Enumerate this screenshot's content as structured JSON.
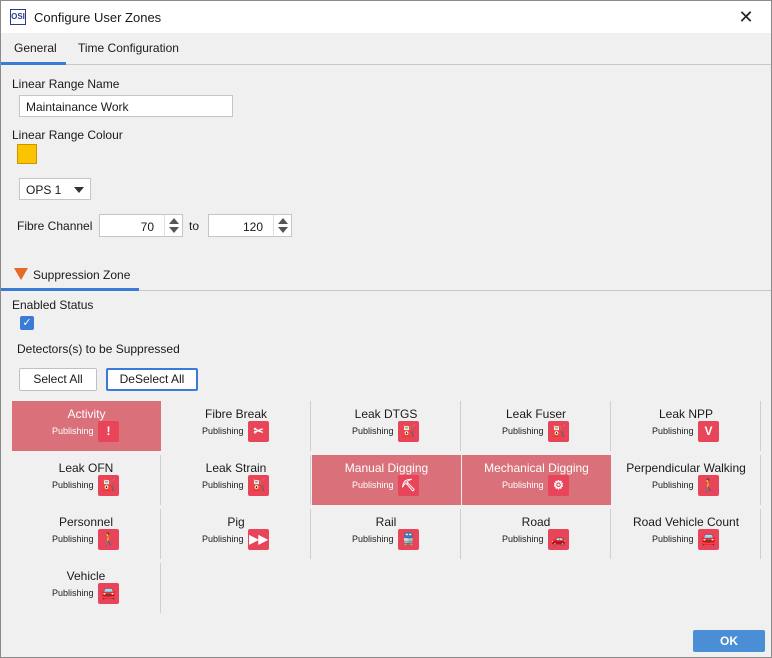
{
  "window": {
    "title": "Configure User Zones",
    "app_icon_text": "OSI"
  },
  "tabs": [
    {
      "label": "General"
    },
    {
      "label": "Time Configuration"
    }
  ],
  "general": {
    "range_name_label": "Linear Range Name",
    "range_name_value": "Maintainance Work",
    "range_colour_label": "Linear Range Colour",
    "range_colour": "#fbc300",
    "ops_value": "OPS 1",
    "fibre_channel_label": "Fibre Channel",
    "from_value": "70",
    "to_label": "to",
    "to_value": "120"
  },
  "suppression": {
    "header": "Suppression Zone",
    "enabled_label": "Enabled Status",
    "enabled_checked": true,
    "detectors_label": "Detectors(s) to be Suppressed",
    "select_all": "Select All",
    "deselect_all": "DeSelect All",
    "detectors": [
      {
        "name": "Activity",
        "status": "Publishing",
        "icon": "!",
        "icon_name": "exclamation-icon",
        "selected": true
      },
      {
        "name": "Fibre Break",
        "status": "Publishing",
        "icon": "✂",
        "icon_name": "fibre-break-icon",
        "selected": false
      },
      {
        "name": "Leak DTGS",
        "status": "Publishing",
        "icon": "⛽",
        "icon_name": "tap-icon",
        "selected": false
      },
      {
        "name": "Leak Fuser",
        "status": "Publishing",
        "icon": "⛽",
        "icon_name": "tap-icon",
        "selected": false
      },
      {
        "name": "Leak NPP",
        "status": "Publishing",
        "icon": "V",
        "icon_name": "v-icon",
        "selected": false
      },
      {
        "name": "Leak OFN",
        "status": "Publishing",
        "icon": "⛽",
        "icon_name": "tap-icon",
        "selected": false
      },
      {
        "name": "Leak Strain",
        "status": "Publishing",
        "icon": "⛽",
        "icon_name": "tap-icon",
        "selected": false
      },
      {
        "name": "Manual Digging",
        "status": "Publishing",
        "icon": "⛏",
        "icon_name": "shovel-icon",
        "selected": true
      },
      {
        "name": "Mechanical Digging",
        "status": "Publishing",
        "icon": "⚙",
        "icon_name": "excavator-icon",
        "selected": true
      },
      {
        "name": "Perpendicular Walking",
        "status": "Publishing",
        "icon": "🚶",
        "icon_name": "walking-icon",
        "selected": false
      },
      {
        "name": "Personnel",
        "status": "Publishing",
        "icon": "🚶",
        "icon_name": "walking-icon",
        "selected": false
      },
      {
        "name": "Pig",
        "status": "Publishing",
        "icon": "▶▶",
        "icon_name": "pig-icon",
        "selected": false
      },
      {
        "name": "Rail",
        "status": "Publishing",
        "icon": "🚆",
        "icon_name": "train-icon",
        "selected": false
      },
      {
        "name": "Road",
        "status": "Publishing",
        "icon": "🚗",
        "icon_name": "cars-icon",
        "selected": false
      },
      {
        "name": "Road Vehicle Count",
        "status": "Publishing",
        "icon": "🚘",
        "icon_name": "vehicle-icon",
        "selected": false
      },
      {
        "name": "Vehicle",
        "status": "Publishing",
        "icon": "🚘",
        "icon_name": "vehicle-icon",
        "selected": false
      }
    ]
  },
  "ok_label": "OK"
}
